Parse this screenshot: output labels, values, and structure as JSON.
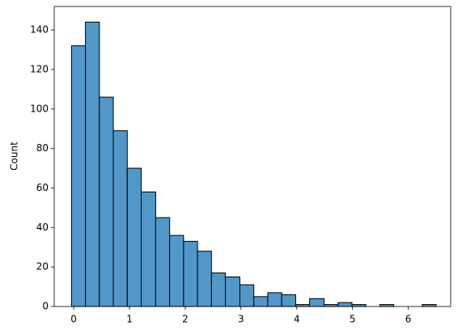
{
  "chart_data": {
    "type": "histogram",
    "y_label": "Count",
    "bins": [
      -0.04,
      0.21,
      0.46,
      0.71,
      0.96,
      1.21,
      1.47,
      1.72,
      1.97,
      2.22,
      2.47,
      2.72,
      2.98,
      3.23,
      3.48,
      3.73,
      3.98,
      4.23,
      4.49,
      4.74,
      4.99,
      5.24,
      5.49,
      5.74,
      6.0,
      6.25,
      6.5
    ],
    "values": [
      132,
      144,
      106,
      89,
      70,
      58,
      45,
      36,
      33,
      28,
      17,
      15,
      11,
      5,
      7,
      6,
      1,
      4,
      1,
      2,
      1,
      0,
      1,
      0,
      0,
      1
    ],
    "color": "#5197c8",
    "edgecolor": "#000000",
    "xlim": [
      -0.35,
      6.76
    ],
    "xticks": [
      0,
      1,
      2,
      3,
      4,
      5,
      6
    ],
    "ylim": [
      0,
      151.9
    ],
    "yticks": [
      0,
      20,
      40,
      60,
      80,
      100,
      120,
      140
    ]
  }
}
